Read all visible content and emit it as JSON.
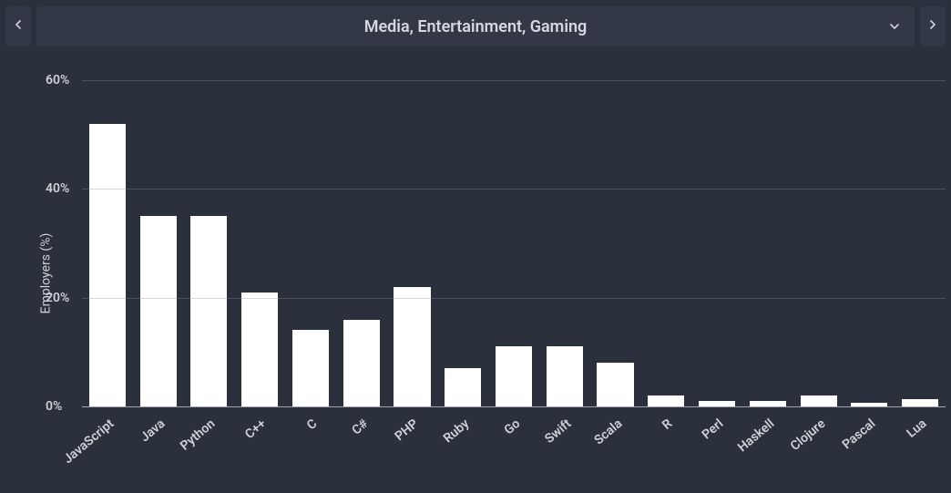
{
  "header": {
    "title": "Media, Entertainment, Gaming",
    "prev_icon": "chevron-left",
    "next_icon": "chevron-right",
    "dropdown_icon": "chevron-down"
  },
  "chart": {
    "type": "bar",
    "y_axis_label": "Employers (%)",
    "y_tick_suffix": "%",
    "ylim": [
      0,
      60
    ],
    "ytick_step": 20,
    "categories": [
      "JavaScript",
      "Java",
      "Python",
      "C++",
      "C",
      "C#",
      "PHP",
      "Ruby",
      "Go",
      "Swift",
      "Scala",
      "R",
      "Perl",
      "Haskell",
      "Clojure",
      "Pascal",
      "Lua"
    ],
    "values": [
      52,
      35,
      35,
      21,
      14,
      16,
      22,
      7,
      11,
      11,
      8,
      2,
      1,
      1,
      2,
      0.6,
      1.3
    ],
    "bar_color": "#ffffff",
    "grid_color": "#8a8e98",
    "baseline_color": "#b0b3bb",
    "background_color": "#2a303c",
    "text_color": "#cfd2d8",
    "title_color": "#d5d8de",
    "header_button_bg": "#323846",
    "bar_width_ratio": 0.72,
    "label_fontsize": 14,
    "title_fontsize": 18,
    "x_label_rotation_deg": -40
  }
}
